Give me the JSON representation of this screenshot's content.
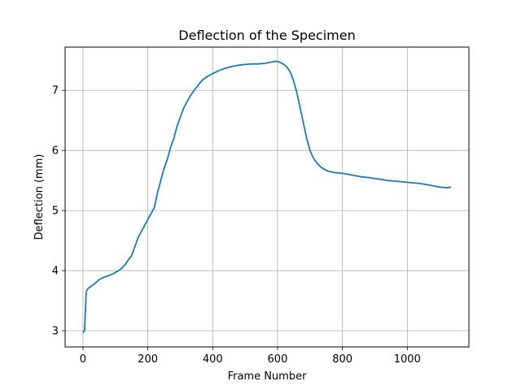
{
  "chart_data": {
    "type": "line",
    "title": "Deflection of the Specimen",
    "xlabel": "Frame Number",
    "ylabel": "Deflection (mm)",
    "xlim": [
      -55,
      1190
    ],
    "ylim": [
      2.73,
      7.72
    ],
    "xticks": [
      0,
      200,
      400,
      600,
      800,
      1000
    ],
    "yticks": [
      3,
      4,
      5,
      6,
      7
    ],
    "grid": true,
    "line_color": "#1f77b4",
    "series": [
      {
        "x": [
          0,
          5,
          10,
          15,
          20,
          30,
          40,
          50,
          60,
          70,
          80,
          90,
          100,
          110,
          120,
          130,
          140,
          150,
          160,
          170,
          180,
          190,
          200,
          210,
          220,
          230,
          240,
          250,
          260,
          270,
          280,
          290,
          300,
          310,
          320,
          330,
          340,
          350,
          360,
          370,
          380,
          390,
          400,
          420,
          440,
          460,
          480,
          500,
          520,
          540,
          560,
          580,
          590,
          600,
          610,
          620,
          630,
          640,
          650,
          660,
          670,
          680,
          690,
          700,
          710,
          720,
          730,
          740,
          750,
          760,
          780,
          800,
          820,
          840,
          860,
          880,
          900,
          920,
          940,
          960,
          980,
          1000,
          1020,
          1040,
          1060,
          1080,
          1100,
          1120,
          1135
        ],
        "y": [
          2.97,
          3.0,
          3.65,
          3.7,
          3.72,
          3.76,
          3.8,
          3.85,
          3.88,
          3.9,
          3.92,
          3.94,
          3.97,
          4.0,
          4.04,
          4.1,
          4.18,
          4.25,
          4.4,
          4.55,
          4.65,
          4.75,
          4.85,
          4.95,
          5.05,
          5.3,
          5.5,
          5.7,
          5.85,
          6.05,
          6.2,
          6.4,
          6.55,
          6.7,
          6.8,
          6.9,
          6.98,
          7.05,
          7.12,
          7.18,
          7.22,
          7.25,
          7.28,
          7.33,
          7.37,
          7.4,
          7.42,
          7.43,
          7.44,
          7.44,
          7.45,
          7.47,
          7.48,
          7.48,
          7.46,
          7.43,
          7.38,
          7.3,
          7.15,
          6.95,
          6.7,
          6.45,
          6.2,
          6.0,
          5.88,
          5.8,
          5.74,
          5.7,
          5.67,
          5.65,
          5.63,
          5.62,
          5.6,
          5.58,
          5.56,
          5.55,
          5.53,
          5.52,
          5.5,
          5.49,
          5.48,
          5.47,
          5.46,
          5.45,
          5.43,
          5.41,
          5.39,
          5.38,
          5.39
        ]
      }
    ]
  }
}
